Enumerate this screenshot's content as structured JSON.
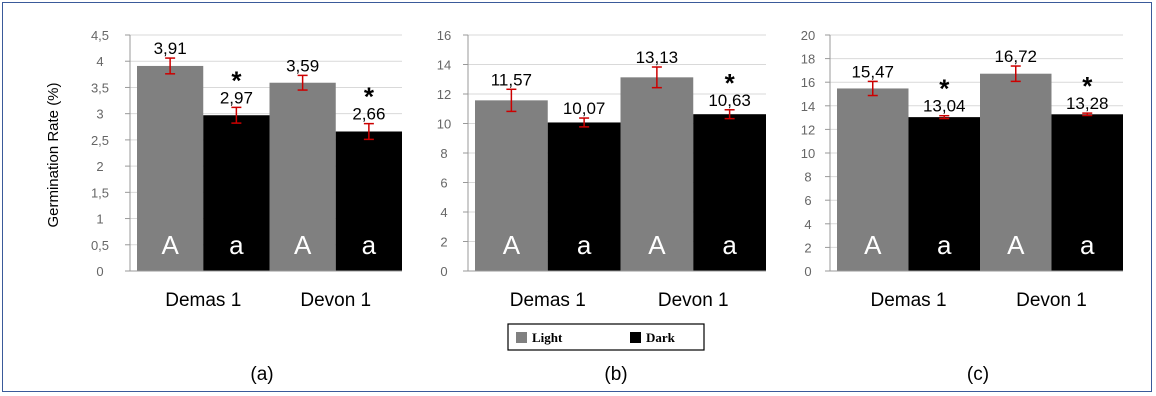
{
  "colors": {
    "light": "#808080",
    "dark": "#000000",
    "error_bar": "#cc0000",
    "frame": "#3a5a9a"
  },
  "y_axis_label": "Germination Rate (%)",
  "legend": {
    "light": "Light",
    "dark": "Dark"
  },
  "chart_data": [
    {
      "type": "bar",
      "panel_label": "(a)",
      "categories": [
        "Demas 1",
        "Devon 1"
      ],
      "series": [
        {
          "name": "Light",
          "values": [
            3.91,
            3.59
          ],
          "errors": [
            0.15,
            0.14
          ],
          "labels": [
            "3,91",
            "3,59"
          ],
          "letter": "A",
          "star": false
        },
        {
          "name": "Dark",
          "values": [
            2.97,
            2.66
          ],
          "errors": [
            0.15,
            0.15
          ],
          "labels": [
            "2,97",
            "2,66"
          ],
          "letter": "a",
          "star": true
        }
      ],
      "ylim": [
        0,
        4.5
      ],
      "yticks": [
        "0",
        "0,5",
        "1",
        "1,5",
        "2",
        "2,5",
        "3",
        "3,5",
        "4",
        "4,5"
      ],
      "ylabel": "Germination Rate (%)"
    },
    {
      "type": "bar",
      "panel_label": "(b)",
      "categories": [
        "Demas 1",
        "Devon 1"
      ],
      "series": [
        {
          "name": "Light",
          "values": [
            11.57,
            13.13
          ],
          "errors": [
            0.75,
            0.7
          ],
          "labels": [
            "11,57",
            "13,13"
          ],
          "letter": "A",
          "star": false
        },
        {
          "name": "Dark",
          "values": [
            10.07,
            10.63
          ],
          "errors": [
            0.3,
            0.3
          ],
          "labels": [
            "10,07",
            "10,63"
          ],
          "letter": "a",
          "star": [
            false,
            true
          ]
        }
      ],
      "ylim": [
        0,
        16
      ],
      "yticks": [
        "0",
        "2",
        "4",
        "6",
        "8",
        "10",
        "12",
        "14",
        "16"
      ]
    },
    {
      "type": "bar",
      "panel_label": "(c)",
      "categories": [
        "Demas 1",
        "Devon 1"
      ],
      "series": [
        {
          "name": "Light",
          "values": [
            15.47,
            16.72
          ],
          "errors": [
            0.6,
            0.65
          ],
          "labels": [
            "15,47",
            "16,72"
          ],
          "letter": "A",
          "star": false
        },
        {
          "name": "Dark",
          "values": [
            13.04,
            13.28
          ],
          "errors": [
            0.12,
            0.1
          ],
          "labels": [
            "13,04",
            "13,28"
          ],
          "letter": "a",
          "star": true
        }
      ],
      "ylim": [
        0,
        20
      ],
      "yticks": [
        "0",
        "2",
        "4",
        "6",
        "8",
        "10",
        "12",
        "14",
        "16",
        "18",
        "20"
      ]
    }
  ]
}
